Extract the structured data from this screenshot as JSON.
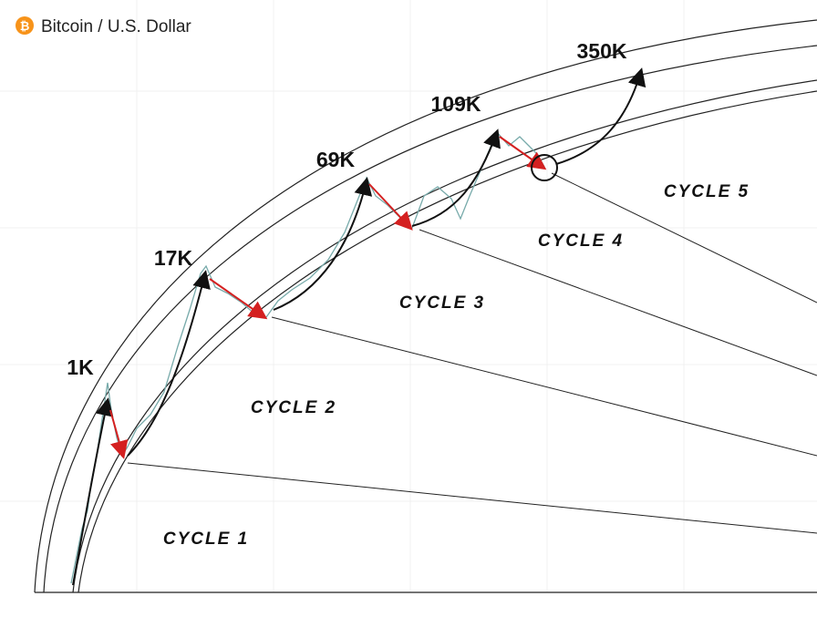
{
  "header": {
    "title": "Bitcoin / U.S. Dollar"
  },
  "peaks": [
    "1K",
    "17K",
    "69K",
    "109K",
    "350K"
  ],
  "cycles": [
    "CYCLE 1",
    "CYCLE 2",
    "CYCLE 3",
    "CYCLE 4",
    "CYCLE 5"
  ]
}
